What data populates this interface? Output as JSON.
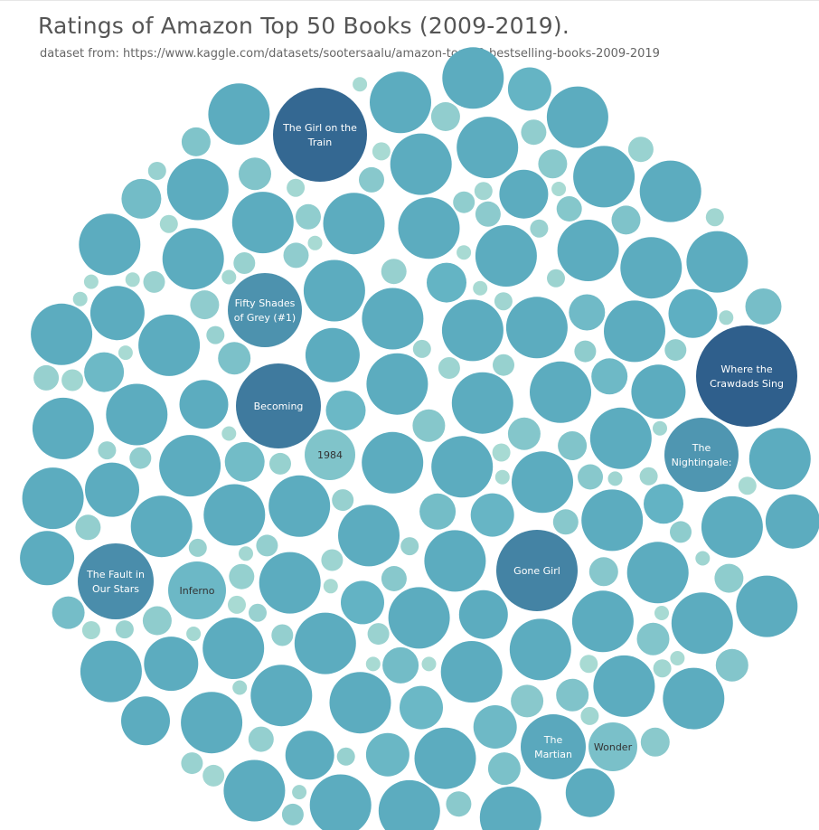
{
  "header": {
    "title": "Ratings of Amazon Top 50 Books (2009-2019).",
    "subtitle": "dataset from: https://www.kaggle.com/datasets/sootersaalu/amazon-top-50-bestselling-books-2009-2019"
  },
  "chart_data": {
    "type": "bubble",
    "title": "Ratings of Amazon Top 50 Books (2009-2019).",
    "colors": {
      "low": "#a8dad3",
      "mid": "#5fb1c3",
      "high": "#2f5f8c"
    },
    "labeled_books": [
      {
        "name": "Where the Crawdads Sing",
        "lines": [
          "Where the",
          "Crawdads Sing"
        ],
        "intensity": 1.0
      },
      {
        "name": "The Girl on the Train",
        "lines": [
          "The Girl on the",
          "Train"
        ],
        "intensity": 0.95
      },
      {
        "name": "Becoming",
        "lines": [
          "Becoming"
        ],
        "intensity": 0.85
      },
      {
        "name": "Gone Girl",
        "lines": [
          "Gone Girl"
        ],
        "intensity": 0.8
      },
      {
        "name": "The Fault in Our Stars",
        "lines": [
          "The Fault in",
          "Our Stars"
        ],
        "intensity": 0.75
      },
      {
        "name": "Fifty Shades of Grey (#1)",
        "lines": [
          "Fifty Shades",
          "of Grey (#1)"
        ],
        "intensity": 0.72
      },
      {
        "name": "The Nightingale:",
        "lines": [
          "The",
          "Nightingale:"
        ],
        "intensity": 0.7
      },
      {
        "name": "The Martian",
        "lines": [
          "The",
          "Martian"
        ],
        "intensity": 0.6
      },
      {
        "name": "Inferno",
        "lines": [
          "Inferno"
        ],
        "intensity": 0.45
      },
      {
        "name": "Wonder",
        "lines": [
          "Wonder"
        ],
        "intensity": 0.35
      },
      {
        "name": "1984",
        "lines": [
          "1984"
        ],
        "intensity": 0.3
      }
    ]
  }
}
